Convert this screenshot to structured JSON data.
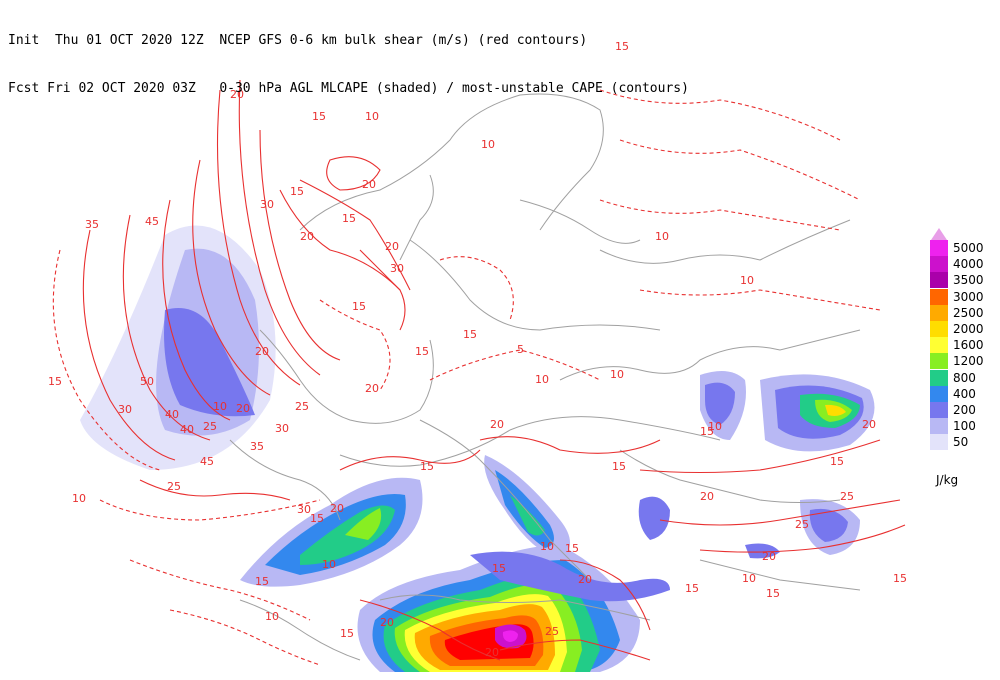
{
  "header": {
    "line1": "Init  Thu 01 OCT 2020 12Z  NCEP GFS 0-6 km bulk shear (m/s) (red contours)",
    "line2": "Fcst Fri 02 OCT 2020 03Z   0-30 hPa AGL MLCAPE (shaded) / most-unstable CAPE (contours)"
  },
  "legend": {
    "top_arrow_color": "#e89ee8",
    "items": [
      {
        "label": "5000",
        "color": "#ee22ee"
      },
      {
        "label": "4000",
        "color": "#cc11cc"
      },
      {
        "label": "3500",
        "color": "#aa00aa"
      },
      {
        "label": "3000",
        "color": "#ff6600"
      },
      {
        "label": "2500",
        "color": "#ffaa00"
      },
      {
        "label": "2000",
        "color": "#ffdd00"
      },
      {
        "label": "1600",
        "color": "#ffff33"
      },
      {
        "label": "1200",
        "color": "#88ee22"
      },
      {
        "label": "800",
        "color": "#22cc88"
      },
      {
        "label": "400",
        "color": "#3388ee"
      },
      {
        "label": "200",
        "color": "#7777ee"
      },
      {
        "label": "100",
        "color": "#b8b8f4"
      },
      {
        "label": "50",
        "color": "#e3e3fa"
      }
    ],
    "units": "J/kg"
  },
  "contour_labels": [
    "45",
    "35",
    "15",
    "30",
    "50",
    "10",
    "40",
    "20",
    "25",
    "5"
  ],
  "colors": {
    "shear_contour": "#e83030",
    "border": "#a0a0a0",
    "cape_low": "#e3e3fa",
    "cape_mid": "#7777ee",
    "cape_high": "#ff0000",
    "cape_max": "#ee22ee"
  }
}
